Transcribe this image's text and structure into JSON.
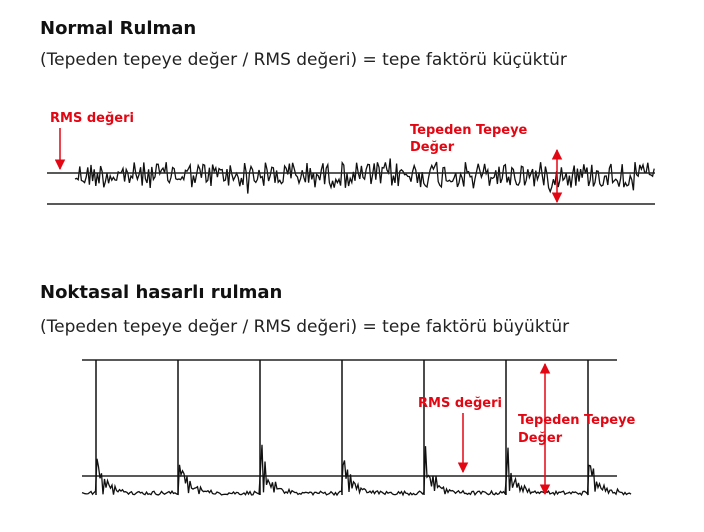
{
  "sections": [
    {
      "title": "Normal Rulman",
      "subtitle": "(Tepeden tepeye değer / RMS değeri) = tepe faktörü küçüktür",
      "rms_label": "RMS değeri",
      "peak_label": [
        "Tepeden Tepeye",
        "Değer"
      ]
    },
    {
      "title": "Noktasal hasarlı rulman",
      "subtitle": "(Tepeden tepeye değer / RMS değeri) = tepe faktörü büyüktür",
      "rms_label": "RMS değeri",
      "peak_label": [
        "Tepeden Tepeye",
        "Değer"
      ]
    }
  ]
}
